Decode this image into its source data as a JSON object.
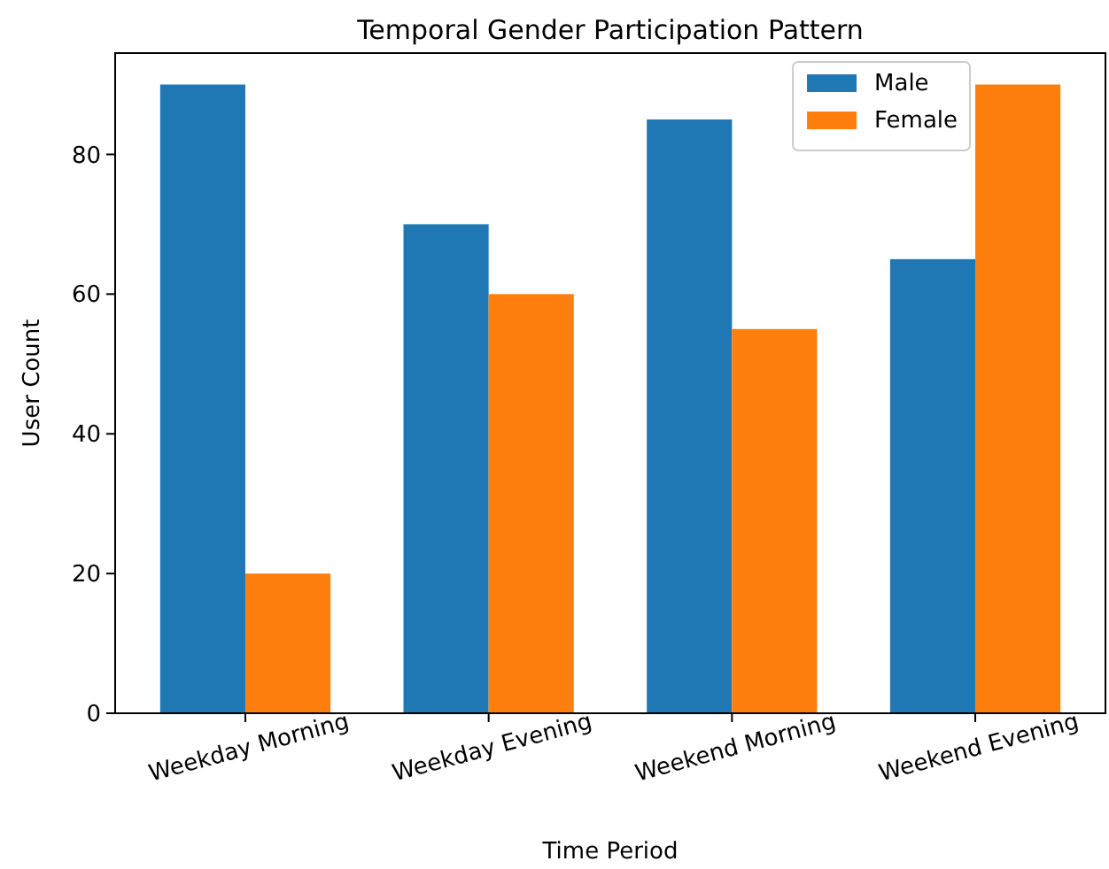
{
  "chart_data": {
    "type": "bar",
    "title": "Temporal Gender Participation Pattern",
    "xlabel": "Time Period",
    "ylabel": "User Count",
    "categories": [
      "Weekday Morning",
      "Weekday Evening",
      "Weekend Morning",
      "Weekend Evening"
    ],
    "series": [
      {
        "name": "Male",
        "color": "#1f77b4",
        "values": [
          90,
          70,
          85,
          65
        ]
      },
      {
        "name": "Female",
        "color": "#ff7f0e",
        "values": [
          20,
          60,
          55,
          90
        ]
      }
    ],
    "ylim": [
      0,
      94.5
    ],
    "yticks": [
      0,
      20,
      40,
      60,
      80
    ],
    "legend": "top right",
    "grid": false
  }
}
